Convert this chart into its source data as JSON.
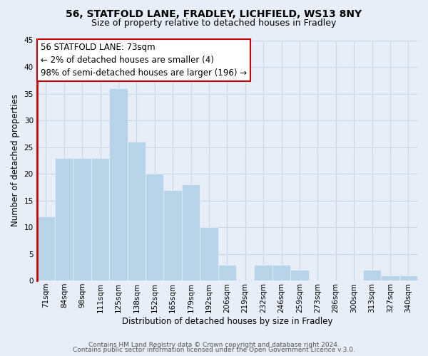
{
  "title": "56, STATFOLD LANE, FRADLEY, LICHFIELD, WS13 8NY",
  "subtitle": "Size of property relative to detached houses in Fradley",
  "xlabel": "Distribution of detached houses by size in Fradley",
  "ylabel": "Number of detached properties",
  "footer_lines": [
    "Contains HM Land Registry data © Crown copyright and database right 2024.",
    "Contains public sector information licensed under the Open Government Licence v.3.0."
  ],
  "bar_labels": [
    "71sqm",
    "84sqm",
    "98sqm",
    "111sqm",
    "125sqm",
    "138sqm",
    "152sqm",
    "165sqm",
    "179sqm",
    "192sqm",
    "206sqm",
    "219sqm",
    "232sqm",
    "246sqm",
    "259sqm",
    "273sqm",
    "286sqm",
    "300sqm",
    "313sqm",
    "327sqm",
    "340sqm"
  ],
  "bar_values": [
    12,
    23,
    23,
    23,
    36,
    26,
    20,
    17,
    18,
    10,
    3,
    0,
    3,
    3,
    2,
    0,
    0,
    0,
    2,
    1,
    1
  ],
  "bar_color": "#b8d4e8",
  "bar_edge_color": "#a0bcd8",
  "highlight_color": "#cc0000",
  "ylim": [
    0,
    45
  ],
  "yticks": [
    0,
    5,
    10,
    15,
    20,
    25,
    30,
    35,
    40,
    45
  ],
  "annotation_text_line1": "56 STATFOLD LANE: 73sqm",
  "annotation_text_line2": "← 2% of detached houses are smaller (4)",
  "annotation_text_line3": "98% of semi-detached houses are larger (196) →",
  "annotation_box_color": "#ffffff",
  "annotation_box_edgecolor": "#cc0000",
  "grid_color": "#c8d8e8",
  "bg_color": "#e8eef8",
  "title_fontsize": 10,
  "subtitle_fontsize": 9,
  "axis_label_fontsize": 8.5,
  "tick_fontsize": 7.5,
  "annotation_fontsize": 8.5,
  "footer_fontsize": 6.5
}
